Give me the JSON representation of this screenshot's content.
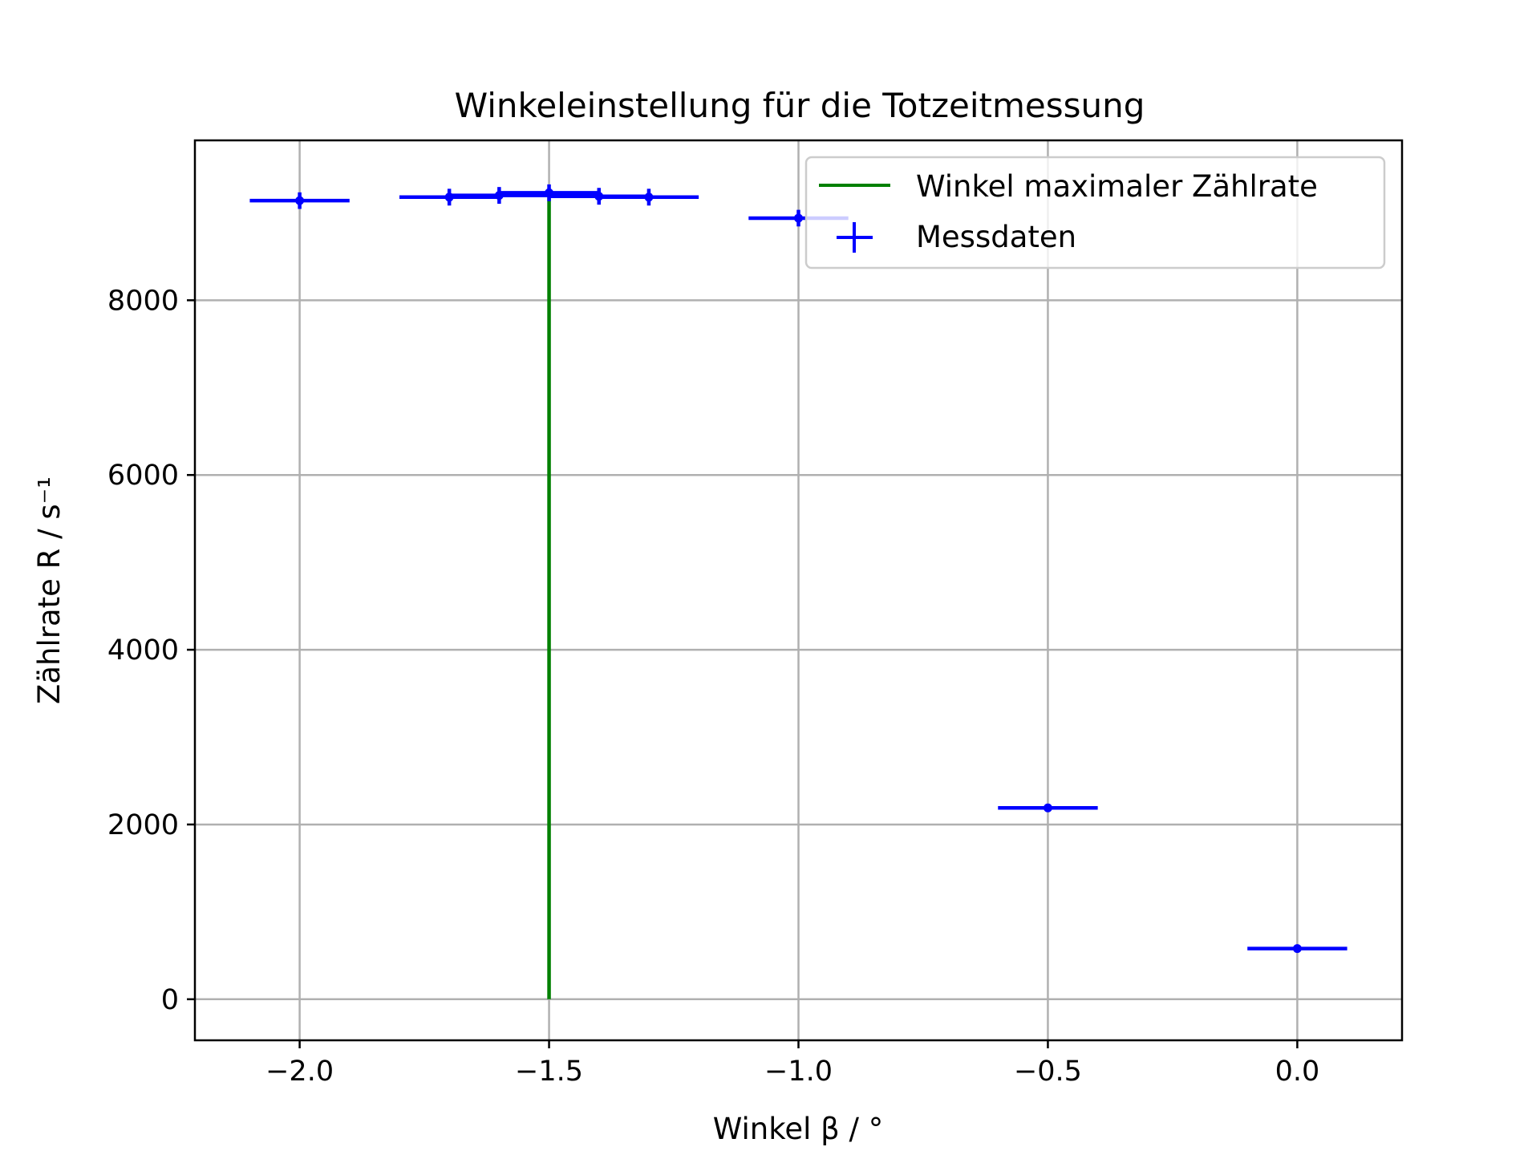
{
  "chart_data": {
    "type": "scatter",
    "title": "Winkeleinstellung für die Totzeitmessung",
    "xlabel": "Winkel β / °",
    "ylabel": "Zählrate R / s⁻¹",
    "xlim": [
      -2.21,
      0.21
    ],
    "ylim": [
      -470,
      9830
    ],
    "xticks": [
      -2.0,
      -1.5,
      -1.0,
      -0.5,
      0.0
    ],
    "xtick_labels": [
      "−2.0",
      "−1.5",
      "−1.0",
      "−0.5",
      "0.0"
    ],
    "yticks": [
      0,
      2000,
      4000,
      6000,
      8000
    ],
    "ytick_labels": [
      "0",
      "2000",
      "4000",
      "6000",
      "8000"
    ],
    "grid": true,
    "legend_position": "top-right",
    "series": [
      {
        "name": "Winkel maximaler Zählrate",
        "kind": "vline",
        "color": "#008000",
        "x": -1.5,
        "y_range": [
          0,
          9230
        ]
      },
      {
        "name": "Messdaten",
        "kind": "errorbar",
        "color": "#0000ff",
        "x": [
          -2.0,
          -1.7,
          -1.6,
          -1.5,
          -1.4,
          -1.3,
          -1.0,
          -0.5,
          0.0
        ],
        "y": [
          9140,
          9180,
          9200,
          9230,
          9190,
          9180,
          8940,
          2190,
          580
        ],
        "xerr": [
          0.1,
          0.1,
          0.1,
          0.1,
          0.1,
          0.1,
          0.1,
          0.1,
          0.1
        ],
        "yerr": [
          95,
          96,
          96,
          96,
          96,
          96,
          95,
          47,
          24
        ]
      }
    ]
  }
}
